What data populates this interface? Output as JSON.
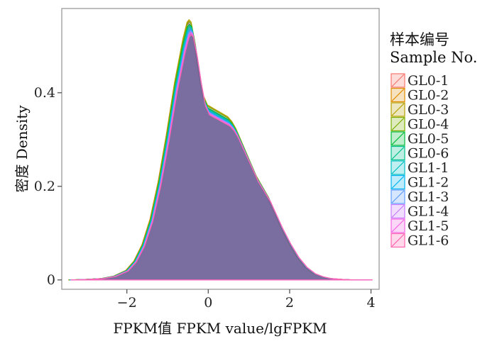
{
  "chart_data": {
    "type": "area",
    "title": "",
    "xlabel": "FPKM值 FPKM value/lgFPKM",
    "ylabel": "密度 Density",
    "xlim": [
      -3.6,
      4.2
    ],
    "ylim": [
      -0.02,
      0.58
    ],
    "x_ticks": [
      -2,
      0,
      2,
      4
    ],
    "x_tick_labels": [
      "−2",
      "0",
      "2",
      "4"
    ],
    "y_ticks": [
      0,
      0.2,
      0.4
    ],
    "y_tick_labels": [
      "0",
      "0.2",
      "0.4"
    ],
    "grid": false,
    "legend": {
      "title_line1": "样本编号",
      "title_line2": "Sample No.",
      "placement": "right"
    },
    "fill_color": "#6B5F97",
    "series": [
      {
        "name": "GL0-1",
        "color": "#F8766D",
        "peak": 0.548
      },
      {
        "name": "GL0-2",
        "color": "#DE8C00",
        "peak": 0.553
      },
      {
        "name": "GL0-3",
        "color": "#B79F00",
        "peak": 0.556
      },
      {
        "name": "GL0-4",
        "color": "#7CAE00",
        "peak": 0.552
      },
      {
        "name": "GL0-5",
        "color": "#00BA38",
        "peak": 0.546
      },
      {
        "name": "GL0-6",
        "color": "#00C08B",
        "peak": 0.543
      },
      {
        "name": "GL1-1",
        "color": "#00BFC4",
        "peak": 0.54
      },
      {
        "name": "GL1-2",
        "color": "#00B4F0",
        "peak": 0.536
      },
      {
        "name": "GL1-3",
        "color": "#619CFF",
        "peak": 0.533
      },
      {
        "name": "GL1-4",
        "color": "#C77CFF",
        "peak": 0.53
      },
      {
        "name": "GL1-5",
        "color": "#F564E3",
        "peak": 0.527
      },
      {
        "name": "GL1-6",
        "color": "#FF64B0",
        "peak": 0.524
      }
    ],
    "density_x": [
      -3.4,
      -3.0,
      -2.6,
      -2.3,
      -2.0,
      -1.8,
      -1.6,
      -1.4,
      -1.2,
      -1.0,
      -0.8,
      -0.6,
      -0.5,
      -0.45,
      -0.4,
      -0.3,
      -0.2,
      -0.1,
      0.0,
      0.1,
      0.2,
      0.3,
      0.4,
      0.5,
      0.6,
      0.7,
      0.8,
      0.9,
      1.0,
      1.1,
      1.2,
      1.3,
      1.4,
      1.5,
      1.6,
      1.7,
      1.8,
      2.0,
      2.2,
      2.4,
      2.6,
      2.8,
      3.0,
      3.3,
      3.6,
      4.0
    ],
    "density_y": [
      0,
      0.001,
      0.003,
      0.008,
      0.02,
      0.04,
      0.075,
      0.13,
      0.21,
      0.31,
      0.42,
      0.51,
      0.545,
      0.55,
      0.545,
      0.5,
      0.44,
      0.39,
      0.37,
      0.365,
      0.36,
      0.355,
      0.35,
      0.345,
      0.335,
      0.32,
      0.3,
      0.28,
      0.26,
      0.24,
      0.22,
      0.205,
      0.19,
      0.175,
      0.155,
      0.135,
      0.115,
      0.08,
      0.05,
      0.028,
      0.014,
      0.007,
      0.003,
      0.001,
      0,
      0
    ]
  }
}
